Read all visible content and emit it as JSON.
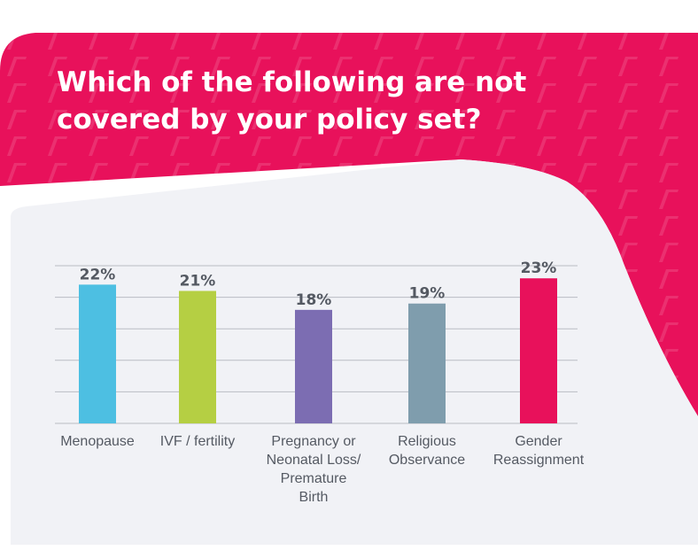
{
  "title": "Which of the following are not covered by your policy set?",
  "colors": {
    "banner": "#e8115b",
    "panel": "#f1f2f6",
    "gridline": "#b9bcc3",
    "data_label": "#545962"
  },
  "chart_data": {
    "type": "bar",
    "title": "Which of the following are not covered by your policy set?",
    "xlabel": "",
    "ylabel": "",
    "categories": [
      "Menopause",
      "IVF / fertility",
      "Pregnancy or\nNeonatal Loss/\nPremature\nBirth",
      "Religious\nObservance",
      "Gender\nReassignment"
    ],
    "values": [
      22,
      21,
      18,
      19,
      23
    ],
    "data_labels": [
      "22%",
      "21%",
      "18%",
      "19%",
      "23%"
    ],
    "bar_colors": [
      "#4dbfe2",
      "#b5cf43",
      "#7c6db2",
      "#7f9dad",
      "#e8115b"
    ],
    "ylim": [
      0,
      25
    ],
    "grid": true,
    "legend": "none"
  }
}
